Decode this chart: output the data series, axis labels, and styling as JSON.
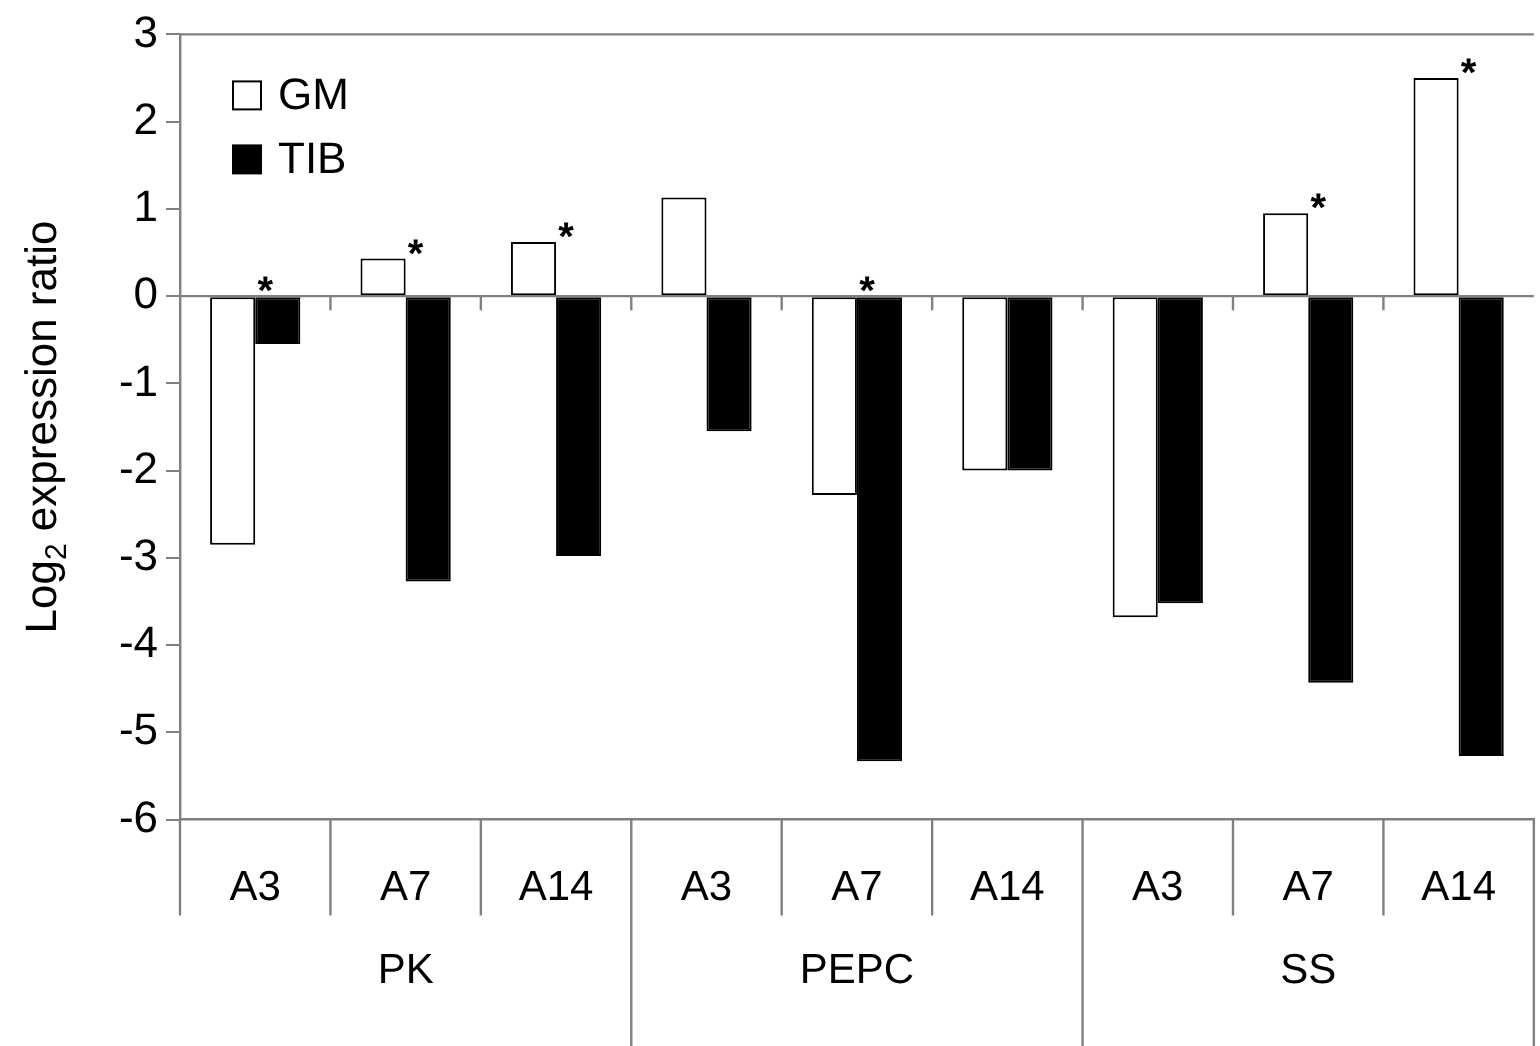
{
  "chart_data": {
    "type": "bar",
    "ylabel": "Log$_{2}$ expression ratio",
    "categories": [
      "A3",
      "A7",
      "A14",
      "A3",
      "A7",
      "A14",
      "A3",
      "A7",
      "A14"
    ],
    "series": [
      {
        "name": "GM",
        "color": "#ffffff",
        "values": [
          -2.85,
          0.43,
          0.62,
          1.13,
          -2.28,
          -2.0,
          -3.68,
          0.95,
          2.5
        ],
        "value_labels": [
          "*",
          "*",
          "*",
          null,
          "*",
          null,
          null,
          "*",
          "*"
        ]
      },
      {
        "name": "TIB",
        "color": "#000000",
        "values": [
          -0.55,
          -3.27,
          -2.98,
          -1.55,
          -5.33,
          -2.0,
          -3.52,
          -4.43,
          -5.27
        ]
      }
    ],
    "annotations": [
      "PK",
      "PEPC",
      "SS"
    ],
    "ylim": [
      -6,
      3
    ],
    "yticks": [
      -6,
      -5,
      -4,
      -3,
      -2,
      -1,
      0,
      1,
      2,
      3
    ],
    "ref_lines": [
      {
        "axis": "y",
        "value": 0,
        "color": "#808080"
      }
    ],
    "grid": false,
    "legend": "top left"
  }
}
